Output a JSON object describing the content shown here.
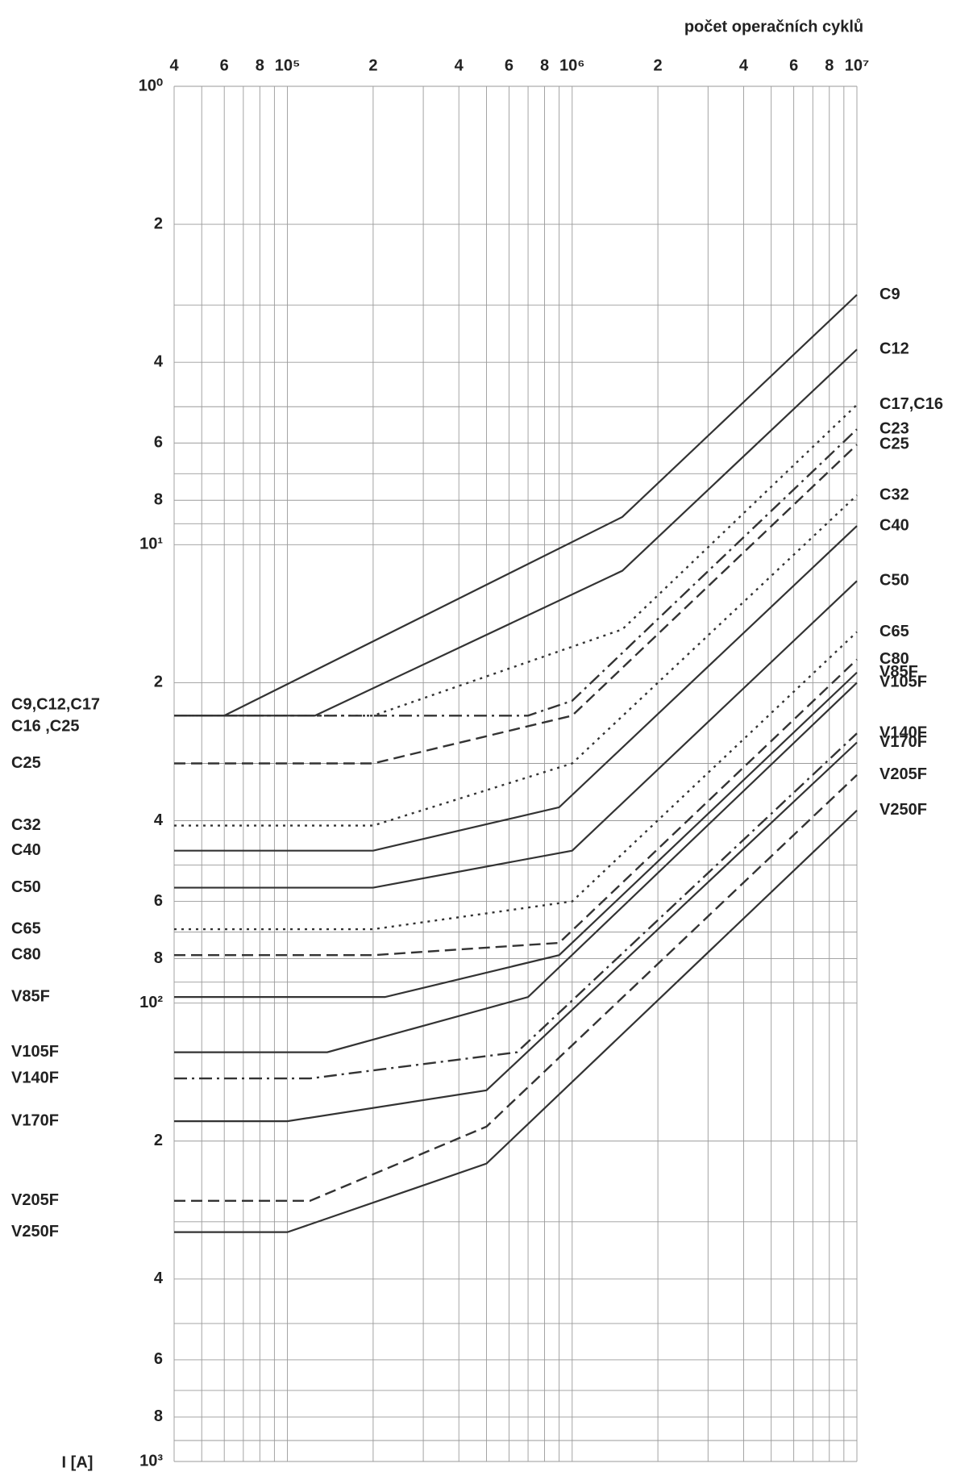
{
  "chart_data": {
    "type": "line",
    "title": "počet operačních cyklů",
    "y_label": "I [A]",
    "xscale": "log",
    "yscale": "log",
    "y_inverted": true,
    "grid": true,
    "xlim": [
      40000,
      10000000
    ],
    "ylim": [
      1,
      1000
    ],
    "xticks": [
      {
        "value": 40000,
        "label": "4"
      },
      {
        "value": 60000,
        "label": "6"
      },
      {
        "value": 80000,
        "label": "8"
      },
      {
        "value": 100000,
        "label": "10⁵"
      },
      {
        "value": 200000,
        "label": "2"
      },
      {
        "value": 400000,
        "label": "4"
      },
      {
        "value": 600000,
        "label": "6"
      },
      {
        "value": 800000,
        "label": "8"
      },
      {
        "value": 1000000,
        "label": "10⁶"
      },
      {
        "value": 2000000,
        "label": "2"
      },
      {
        "value": 4000000,
        "label": "4"
      },
      {
        "value": 6000000,
        "label": "6"
      },
      {
        "value": 8000000,
        "label": "8"
      },
      {
        "value": 10000000,
        "label": "10⁷"
      }
    ],
    "xminor": [
      50000,
      70000,
      90000,
      300000,
      500000,
      700000,
      900000,
      3000000,
      5000000,
      7000000,
      9000000
    ],
    "yticks": [
      {
        "value": 1,
        "label": "10⁰"
      },
      2,
      4,
      6,
      8,
      {
        "value": 10,
        "label": "10¹"
      },
      {
        "value": 20,
        "label": "2"
      },
      {
        "value": 40,
        "label": "4"
      },
      {
        "value": 60,
        "label": "6"
      },
      {
        "value": 80,
        "label": "8"
      },
      {
        "value": 100,
        "label": "10²"
      },
      {
        "value": 200,
        "label": "2"
      },
      {
        "value": 400,
        "label": "4"
      },
      {
        "value": 600,
        "label": "6"
      },
      {
        "value": 800,
        "label": "8"
      },
      {
        "value": 1000,
        "label": "10³"
      }
    ],
    "yminor": [
      3,
      5,
      7,
      9,
      30,
      50,
      70,
      90,
      300,
      500,
      700,
      900
    ],
    "left_labels": [
      "C9,C12,C17",
      "C16 ,C25",
      "C25",
      "C32",
      "C40",
      "C50",
      "C65",
      "C80",
      "V85F",
      "V105F",
      "V140F",
      "V170F",
      "V205F",
      "V250F"
    ],
    "series": [
      {
        "name": "C9",
        "color": "#333",
        "dash": "solid",
        "x": [
          40000,
          60000,
          1500000,
          10000000
        ],
        "values": [
          23.6,
          23.6,
          8.7,
          2.85
        ]
      },
      {
        "name": "C12",
        "color": "#333",
        "dash": "solid",
        "x": [
          40000,
          125000,
          1500000,
          10000000
        ],
        "values": [
          23.6,
          23.6,
          11.4,
          3.75
        ]
      },
      {
        "name": "C17,C16",
        "color": "#333",
        "dash": "dotted",
        "x": [
          40000,
          200000,
          1500000,
          10000000
        ],
        "values": [
          23.6,
          23.6,
          15.3,
          4.95
        ]
      },
      {
        "name": "C23",
        "color": "#333",
        "dash": "dashdot",
        "x": [
          40000,
          700000,
          1000000,
          10000000
        ],
        "values": [
          23.6,
          23.6,
          21.9,
          5.6
        ]
      },
      {
        "name": "C25",
        "color": "#333",
        "dash": "dashed",
        "x": [
          40000,
          200000,
          1000000,
          10000000
        ],
        "values": [
          30,
          30,
          23.6,
          6.05
        ]
      },
      {
        "name": "C32",
        "color": "#333",
        "dash": "dotted",
        "x": [
          40000,
          200000,
          1000000,
          10000000
        ],
        "values": [
          41,
          41,
          30,
          7.8
        ]
      },
      {
        "name": "C40",
        "color": "#333",
        "dash": "solid",
        "x": [
          40000,
          200000,
          900000,
          10000000
        ],
        "values": [
          46.5,
          46.5,
          37.4,
          9.1
        ]
      },
      {
        "name": "C50",
        "color": "#333",
        "dash": "solid",
        "x": [
          40000,
          200000,
          1000000,
          10000000
        ],
        "values": [
          56,
          56,
          46.5,
          12
        ]
      },
      {
        "name": "C65",
        "color": "#333",
        "dash": "dotted",
        "x": [
          40000,
          200000,
          1000000,
          10000000
        ],
        "values": [
          69,
          69,
          60,
          15.5
        ]
      },
      {
        "name": "C80",
        "color": "#333",
        "dash": "dashed",
        "x": [
          40000,
          200000,
          900000,
          10000000
        ],
        "values": [
          78.6,
          78.6,
          73.9,
          17.8
        ]
      },
      {
        "name": "V85F",
        "color": "#333",
        "dash": "solid",
        "x": [
          40000,
          220000,
          900000,
          10000000
        ],
        "values": [
          97,
          97,
          78.6,
          19
        ]
      },
      {
        "name": "V105F",
        "color": "#333",
        "dash": "solid",
        "x": [
          40000,
          138000,
          700000,
          10000000
        ],
        "values": [
          128,
          128,
          97,
          20
        ]
      },
      {
        "name": "V140F",
        "color": "#333",
        "dash": "dashdot",
        "x": [
          40000,
          120000,
          640000,
          10000000
        ],
        "values": [
          146,
          146,
          128,
          25.8
        ]
      },
      {
        "name": "V170F",
        "color": "#333",
        "dash": "solid",
        "x": [
          40000,
          100000,
          500000,
          10000000
        ],
        "values": [
          181,
          181,
          155,
          27
        ]
      },
      {
        "name": "V205F",
        "color": "#333",
        "dash": "dashed",
        "x": [
          40000,
          120000,
          500000,
          10000000
        ],
        "values": [
          270,
          270,
          186,
          31.8
        ]
      },
      {
        "name": "V250F",
        "color": "#333",
        "dash": "solid",
        "x": [
          40000,
          100000,
          500000,
          10000000
        ],
        "values": [
          316,
          316,
          224,
          38
        ]
      }
    ]
  }
}
